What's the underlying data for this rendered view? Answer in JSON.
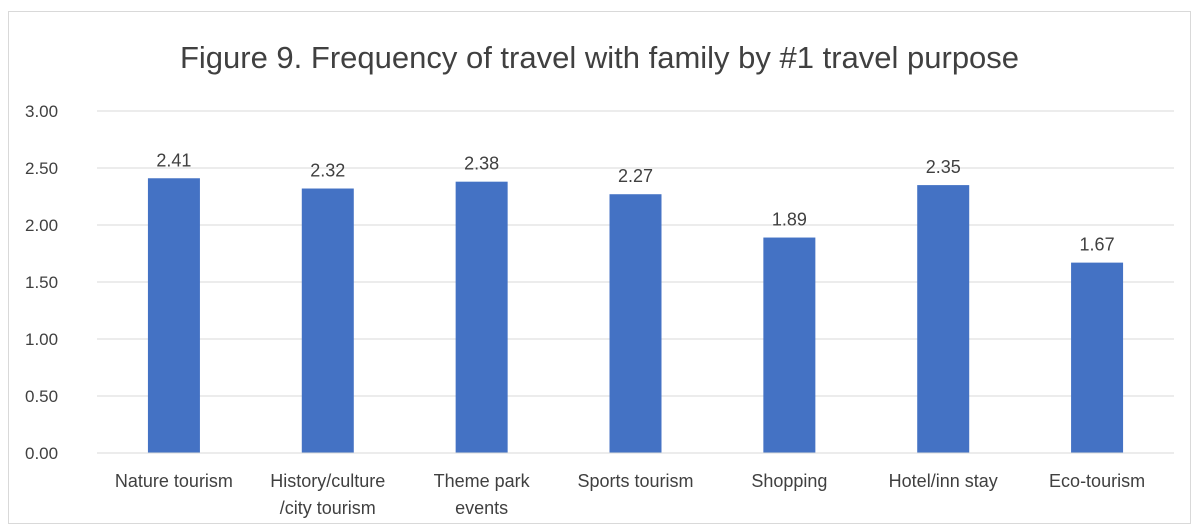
{
  "chart_data": {
    "type": "bar",
    "title": "Figure 9. Frequency of travel with family by #1 travel purpose",
    "categories": [
      [
        "Nature tourism"
      ],
      [
        "History/culture",
        "/city tourism"
      ],
      [
        "Theme park",
        "events"
      ],
      [
        "Sports tourism"
      ],
      [
        "Shopping"
      ],
      [
        "Hotel/inn stay"
      ],
      [
        "Eco-tourism"
      ]
    ],
    "values": [
      2.41,
      2.32,
      2.38,
      2.27,
      1.89,
      2.35,
      1.67
    ],
    "data_labels": [
      "2.41",
      "2.32",
      "2.38",
      "2.27",
      "1.89",
      "2.35",
      "1.67"
    ],
    "ylim": [
      0,
      3
    ],
    "yticks": [
      0,
      0.5,
      1,
      1.5,
      2,
      2.5,
      3
    ],
    "ytick_labels": [
      "0.00",
      "0.50",
      "1.00",
      "1.50",
      "2.00",
      "2.50",
      "3.00"
    ],
    "xlabel": "",
    "ylabel": "",
    "grid": true,
    "legend": false,
    "colors": {
      "bar": "#4472c4",
      "grid": "#d9d9d9",
      "text": "#404040"
    }
  }
}
